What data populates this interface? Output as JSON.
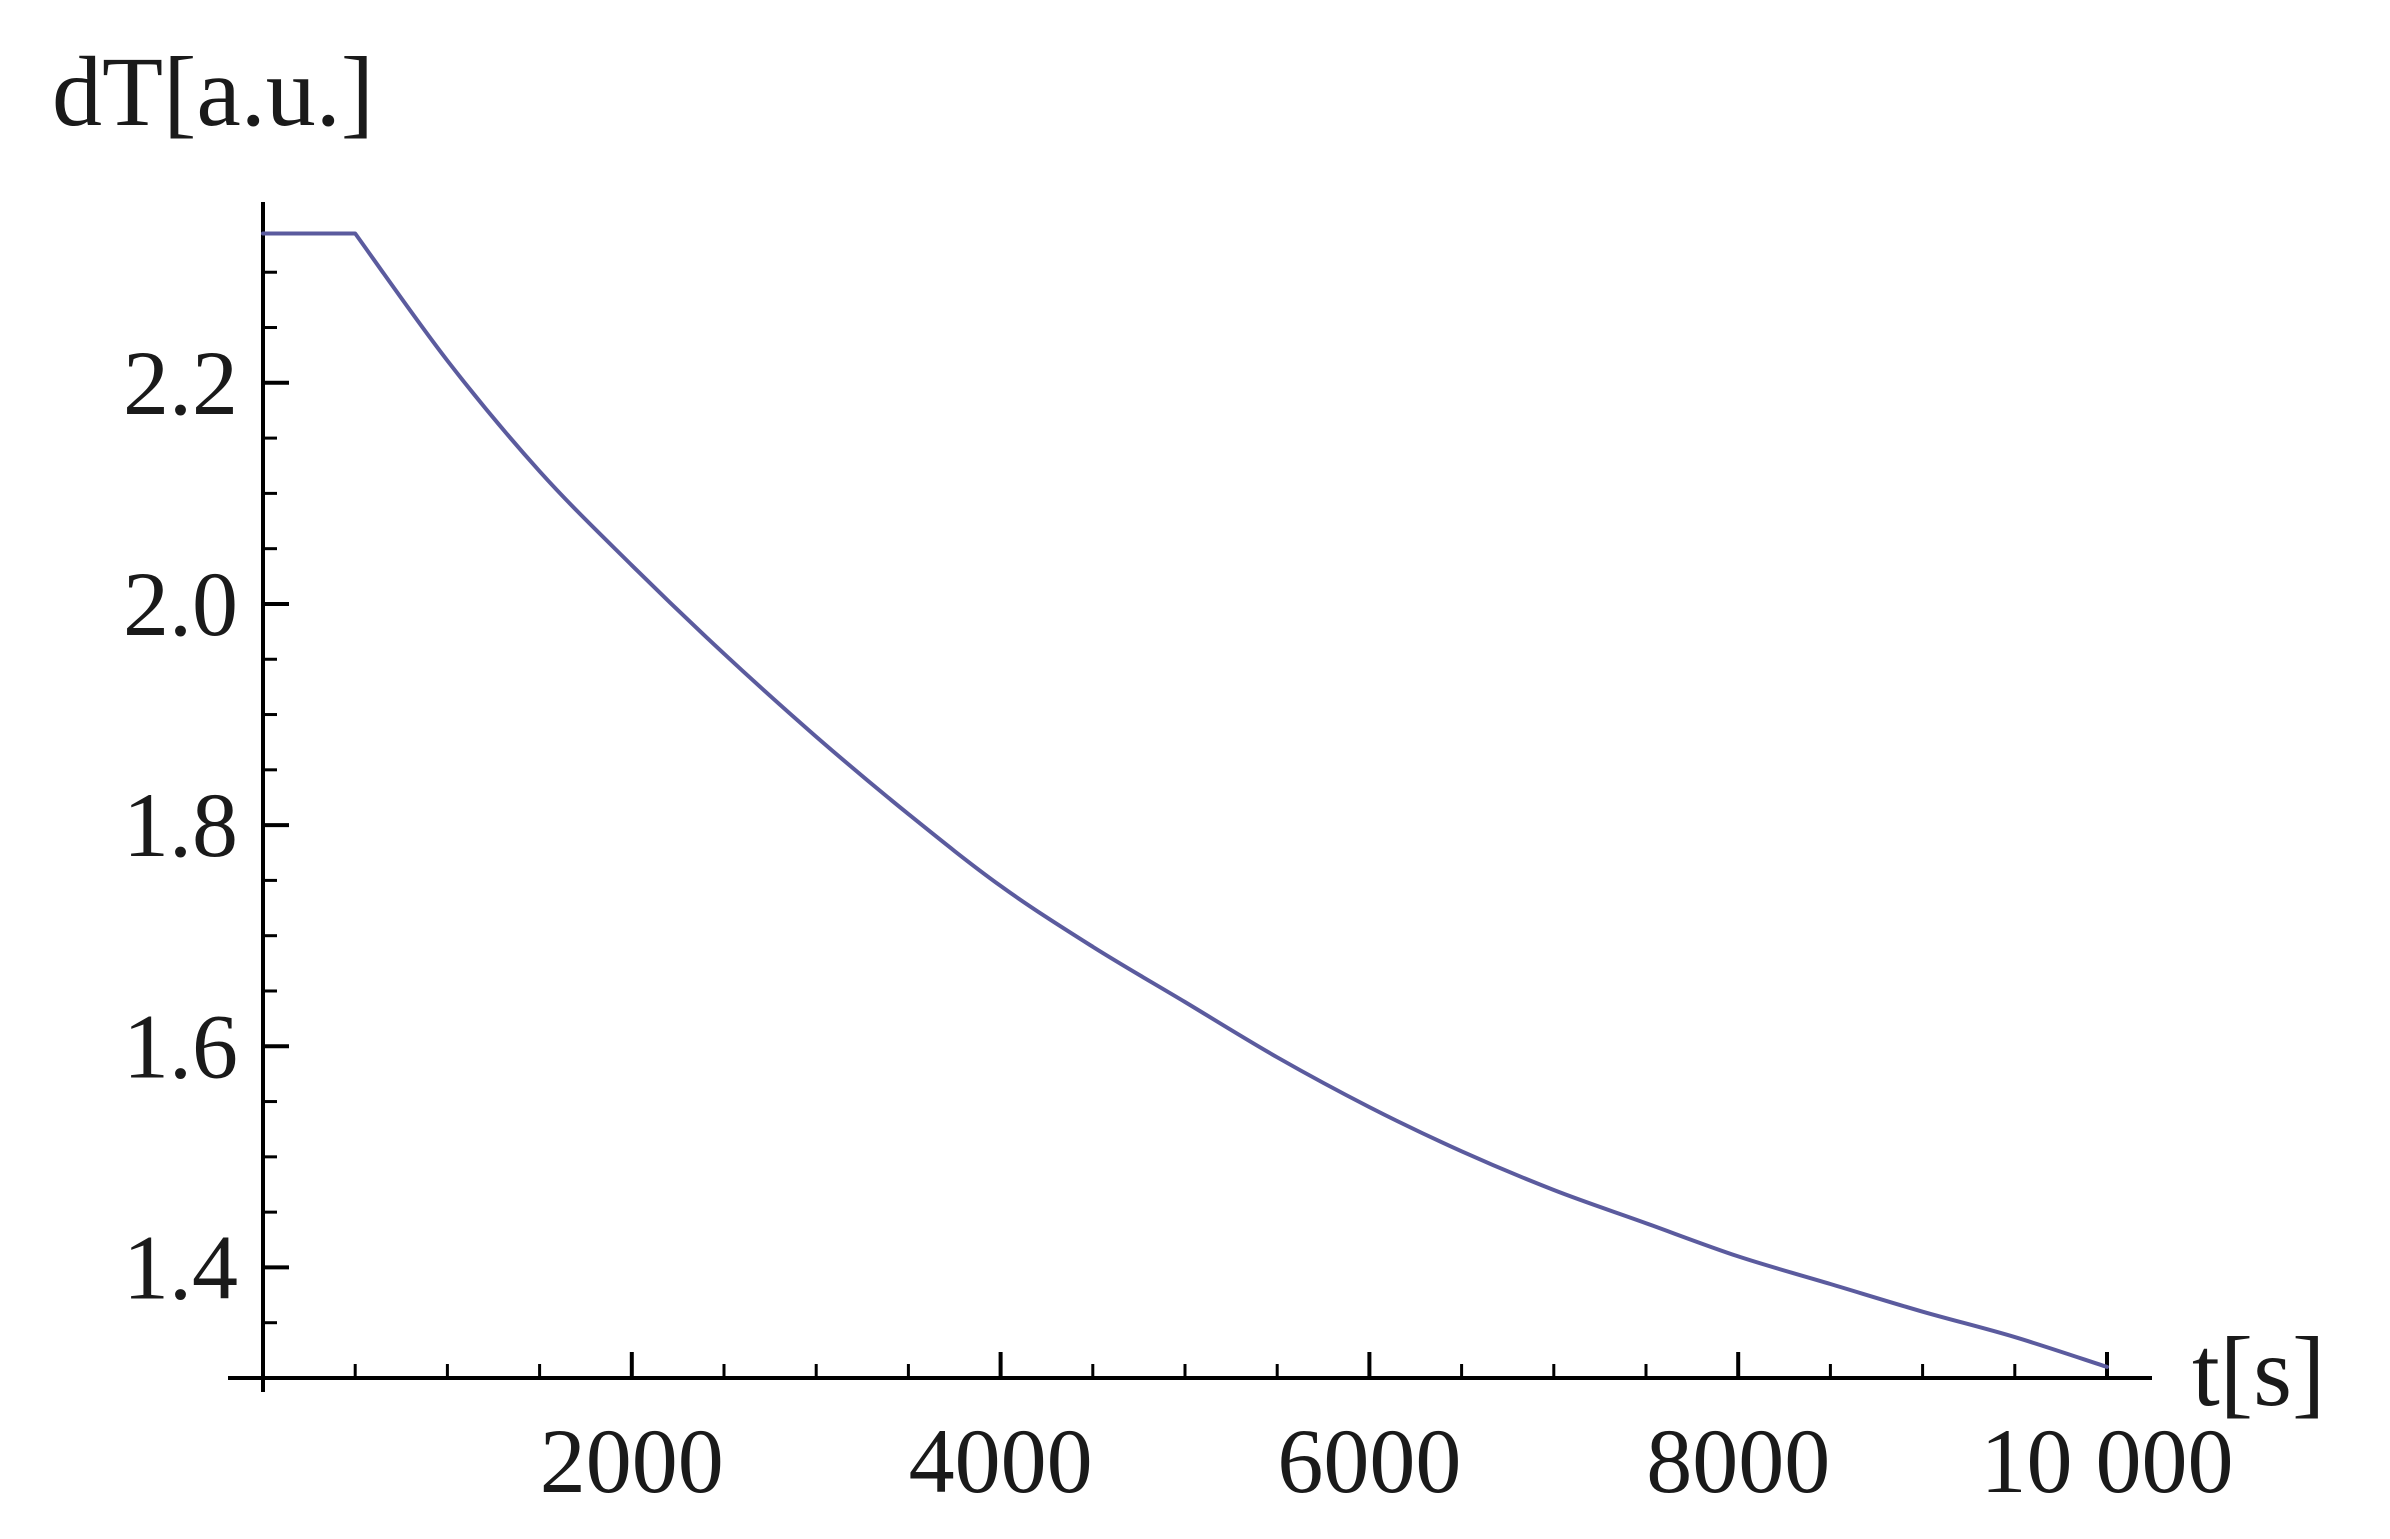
{
  "chart_data": {
    "type": "line",
    "xlabel": "t[s]",
    "ylabel": "dT[a.u.]",
    "xlim": [
      0,
      10000
    ],
    "ylim": [
      1.3,
      2.34
    ],
    "x_ticks": [
      2000,
      4000,
      6000,
      8000,
      10000
    ],
    "x_tick_labels": [
      "2000",
      "4000",
      "6000",
      "8000",
      "10 000"
    ],
    "x_minor_step": 500,
    "y_ticks": [
      1.4,
      1.6,
      1.8,
      2.0,
      2.2
    ],
    "y_tick_labels": [
      "1.4",
      "1.6",
      "1.8",
      "2.0",
      "2.2"
    ],
    "y_minor_step": 0.05,
    "grid": false,
    "series_color": "#5b5b9e",
    "series": [
      {
        "x": [
          0,
          500,
          1000,
          1500,
          2000,
          2500,
          3000,
          3500,
          4000,
          4500,
          5000,
          5500,
          6000,
          6500,
          7000,
          7500,
          8000,
          8500,
          9000,
          9500,
          10000
        ],
        "values": [
          2.335,
          2.335,
          2.22,
          2.12,
          2.035,
          1.955,
          1.88,
          1.81,
          1.745,
          1.69,
          1.64,
          1.59,
          1.545,
          1.505,
          1.47,
          1.44,
          1.41,
          1.385,
          1.36,
          1.337,
          1.31
        ]
      }
    ]
  }
}
